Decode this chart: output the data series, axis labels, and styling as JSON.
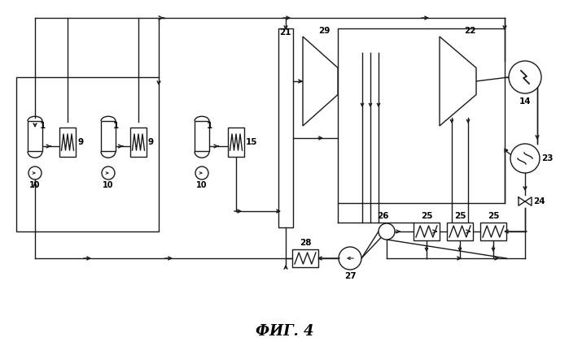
{
  "bg_color": "#ffffff",
  "line_color": "#1a1a1a",
  "title": "ФИГ. 4",
  "title_fontsize": 13,
  "figsize": [
    6.99,
    4.26
  ],
  "dpi": 100
}
